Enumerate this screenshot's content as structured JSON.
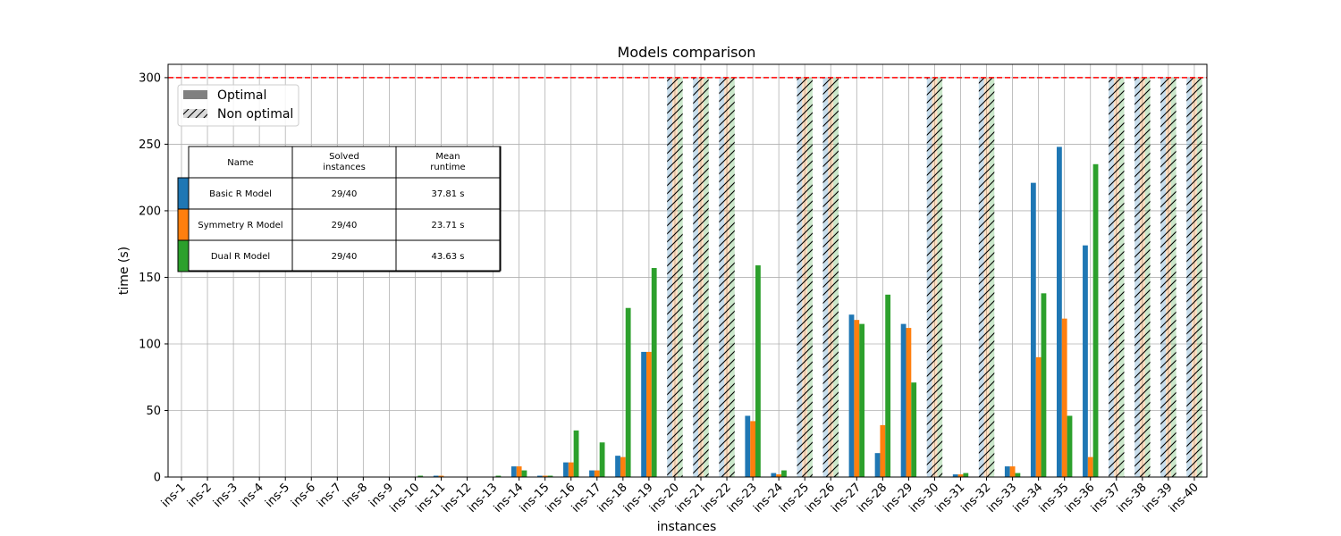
{
  "chart_data": {
    "type": "bar",
    "title": "Models comparison",
    "xlabel": "instances",
    "ylabel": "time (s)",
    "ylim": [
      0,
      310
    ],
    "yticks": [
      0,
      50,
      100,
      150,
      200,
      250,
      300
    ],
    "grid": true,
    "time_limit": 300,
    "categories": [
      "ins-1",
      "ins-2",
      "ins-3",
      "ins-4",
      "ins-5",
      "ins-6",
      "ins-7",
      "ins-8",
      "ins-9",
      "ins-10",
      "ins-11",
      "ins-12",
      "ins-13",
      "ins-14",
      "ins-15",
      "ins-16",
      "ins-17",
      "ins-18",
      "ins-19",
      "ins-20",
      "ins-21",
      "ins-22",
      "ins-23",
      "ins-24",
      "ins-25",
      "ins-26",
      "ins-27",
      "ins-28",
      "ins-29",
      "ins-30",
      "ins-31",
      "ins-32",
      "ins-33",
      "ins-34",
      "ins-35",
      "ins-36",
      "ins-37",
      "ins-38",
      "ins-39",
      "ins-40"
    ],
    "series": [
      {
        "name": "Basic R Model",
        "color": "#1f77b4",
        "values": [
          0,
          0,
          0,
          0,
          0,
          0,
          0,
          0,
          0,
          0,
          1,
          0,
          0,
          8,
          1,
          11,
          5,
          16,
          94,
          300,
          300,
          300,
          46,
          3,
          300,
          300,
          122,
          18,
          115,
          300,
          2,
          300,
          8,
          221,
          248,
          174,
          300,
          300,
          300,
          300
        ]
      },
      {
        "name": "Symmetry R Model",
        "color": "#ff7f0e",
        "values": [
          0,
          0,
          0,
          0,
          0,
          0,
          0,
          0,
          0,
          0,
          1,
          0,
          0,
          8,
          1,
          11,
          5,
          15,
          94,
          300,
          300,
          300,
          42,
          2,
          300,
          300,
          118,
          39,
          112,
          300,
          2,
          300,
          8,
          90,
          119,
          15,
          300,
          300,
          300,
          300
        ]
      },
      {
        "name": "Dual R Model",
        "color": "#2ca02c",
        "values": [
          0,
          0,
          0,
          0,
          0,
          0,
          0,
          0,
          0,
          1,
          0,
          0,
          1,
          5,
          1,
          35,
          26,
          127,
          157,
          300,
          300,
          300,
          159,
          5,
          300,
          300,
          115,
          137,
          71,
          300,
          3,
          300,
          3,
          138,
          46,
          235,
          300,
          300,
          300,
          300
        ]
      }
    ],
    "non_optimal": [
      20,
      21,
      22,
      25,
      26,
      30,
      32,
      37,
      38,
      39,
      40
    ],
    "legend": {
      "placement": "top-left",
      "items": [
        {
          "label": "Optimal",
          "color": "#808080",
          "style": "solid"
        },
        {
          "label": "Non optimal",
          "color": "#d9d9d9",
          "style": "hatched"
        }
      ]
    },
    "table": {
      "headers": [
        "Name",
        "Solved\ninstances",
        "Mean\nruntime"
      ],
      "rows": [
        {
          "color": "#1f77b4",
          "cells": [
            "Basic R Model",
            "29/40",
            "37.81 s"
          ]
        },
        {
          "color": "#ff7f0e",
          "cells": [
            "Symmetry R Model",
            "29/40",
            "23.71 s"
          ]
        },
        {
          "color": "#2ca02c",
          "cells": [
            "Dual R Model",
            "29/40",
            "43.63 s"
          ]
        }
      ]
    }
  }
}
